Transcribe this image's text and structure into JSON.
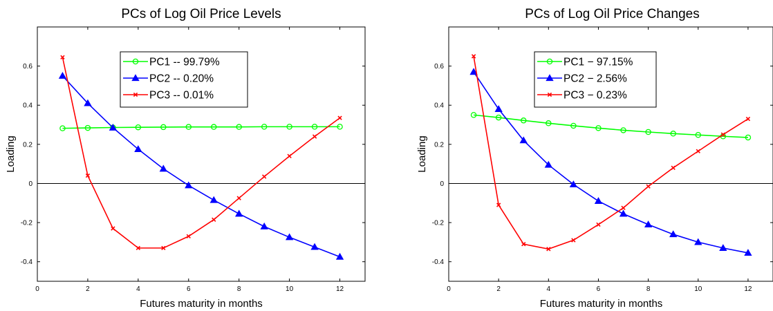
{
  "chart_data": [
    {
      "type": "line",
      "title": "PCs of Log Oil Price Levels",
      "xlabel": "Futures maturity in months",
      "ylabel": "Loading",
      "xlim": [
        0,
        13
      ],
      "ylim": [
        -0.5,
        0.8
      ],
      "xticks": [
        "0",
        "2",
        "4",
        "6",
        "8",
        "10",
        "12"
      ],
      "yticks": [
        "-0.4",
        "-0.2",
        "0",
        "0.2",
        "0.4",
        "0.6"
      ],
      "grid": false,
      "zero_line": true,
      "legend_position": "top-center",
      "x": [
        1,
        2,
        3,
        4,
        5,
        6,
        7,
        8,
        9,
        10,
        11,
        12
      ],
      "series": [
        {
          "name": "PC1 -- 99.79%",
          "color": "#00ff00",
          "marker": "circle",
          "values": [
            0.282,
            0.284,
            0.286,
            0.287,
            0.288,
            0.289,
            0.289,
            0.289,
            0.29,
            0.29,
            0.29,
            0.29
          ]
        },
        {
          "name": "PC2 -- 0.20%",
          "color": "#0000ff",
          "marker": "triangle",
          "values": [
            0.55,
            0.41,
            0.285,
            0.175,
            0.075,
            -0.01,
            -0.085,
            -0.155,
            -0.22,
            -0.275,
            -0.325,
            -0.375
          ]
        },
        {
          "name": "PC3 -- 0.01%",
          "color": "#ff0000",
          "marker": "x",
          "values": [
            0.645,
            0.04,
            -0.23,
            -0.33,
            -0.33,
            -0.27,
            -0.185,
            -0.075,
            0.035,
            0.14,
            0.24,
            0.335
          ]
        }
      ]
    },
    {
      "type": "line",
      "title": "PCs of Log Oil Price Changes",
      "xlabel": "Futures maturity in months",
      "ylabel": "Loading",
      "xlim": [
        0,
        13
      ],
      "ylim": [
        -0.5,
        0.8
      ],
      "xticks": [
        "0",
        "2",
        "4",
        "6",
        "8",
        "10",
        "12"
      ],
      "yticks": [
        "-0.4",
        "-0.2",
        "0",
        "0.2",
        "0.4",
        "0.6"
      ],
      "grid": false,
      "zero_line": true,
      "legend_position": "top-center",
      "x": [
        1,
        2,
        3,
        4,
        5,
        6,
        7,
        8,
        9,
        10,
        11,
        12
      ],
      "series": [
        {
          "name": "PC1 − 97.15%",
          "color": "#00ff00",
          "marker": "circle",
          "values": [
            0.35,
            0.337,
            0.322,
            0.308,
            0.295,
            0.283,
            0.272,
            0.263,
            0.255,
            0.248,
            0.241,
            0.235
          ]
        },
        {
          "name": "PC2 − 2.56%",
          "color": "#0000ff",
          "marker": "triangle",
          "values": [
            0.57,
            0.38,
            0.22,
            0.095,
            -0.005,
            -0.09,
            -0.155,
            -0.21,
            -0.26,
            -0.3,
            -0.33,
            -0.355
          ]
        },
        {
          "name": "PC3 − 0.23%",
          "color": "#ff0000",
          "marker": "x",
          "values": [
            0.65,
            -0.11,
            -0.31,
            -0.335,
            -0.29,
            -0.21,
            -0.125,
            -0.015,
            0.08,
            0.165,
            0.25,
            0.33
          ]
        }
      ]
    }
  ]
}
